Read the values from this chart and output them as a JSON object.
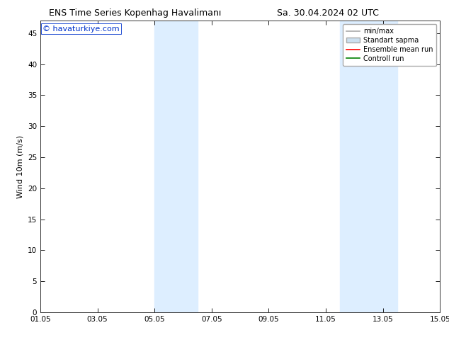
{
  "title_left": "ENS Time Series Kopenhag Havalimanı",
  "title_right": "Sa. 30.04.2024 02 UTC",
  "ylabel": "Wind 10m (m/s)",
  "watermark": "© havaturkiye.com",
  "ylim": [
    0,
    47
  ],
  "yticks": [
    0,
    5,
    10,
    15,
    20,
    25,
    30,
    35,
    40,
    45
  ],
  "xtick_labels": [
    "01.05",
    "03.05",
    "05.05",
    "07.05",
    "09.05",
    "11.05",
    "13.05",
    "15.05"
  ],
  "xtick_positions": [
    0,
    2,
    4,
    6,
    8,
    10,
    12,
    14
  ],
  "xlim": [
    0,
    14
  ],
  "shaded_regions": [
    {
      "start": 4,
      "end": 5.5,
      "color": "#ddeeff"
    },
    {
      "start": 10.5,
      "end": 12.5,
      "color": "#ddeeff"
    }
  ],
  "bg_color": "#ffffff",
  "plot_bg_color": "#ffffff",
  "title_fontsize": 9,
  "label_fontsize": 8,
  "tick_fontsize": 7.5,
  "watermark_color": "#0033cc",
  "watermark_fontsize": 8,
  "legend_fontsize": 7
}
